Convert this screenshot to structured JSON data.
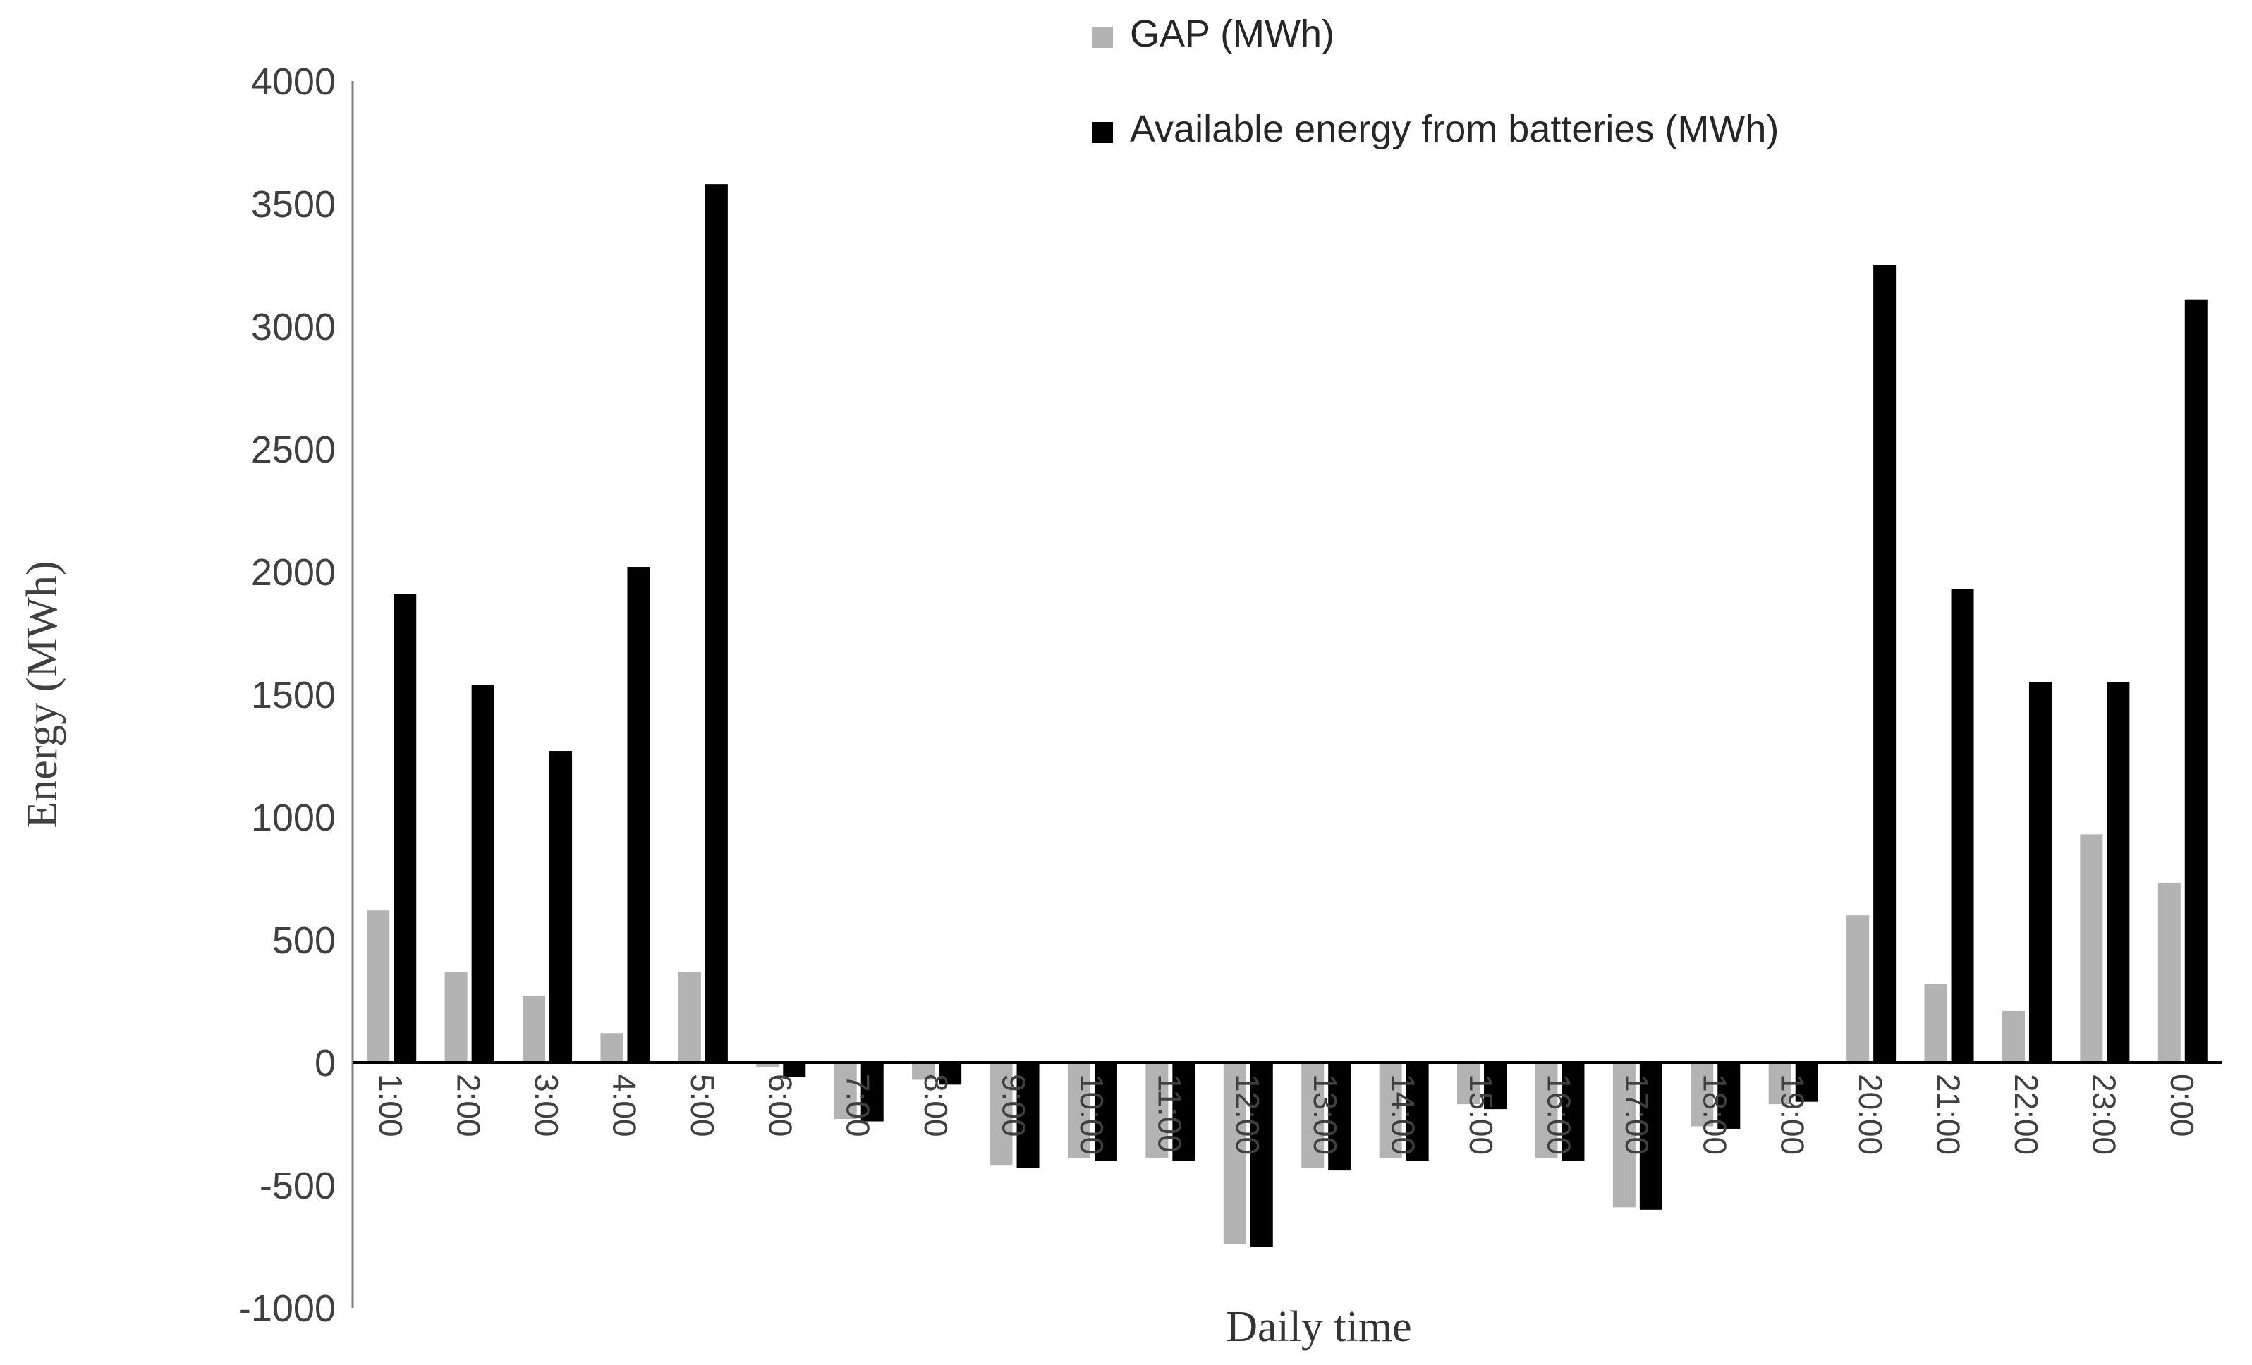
{
  "chart_data": {
    "type": "bar",
    "title": "",
    "xlabel": "Daily time",
    "ylabel": "Energy (MWh)",
    "ylim": [
      -1000,
      4000
    ],
    "yticks": [
      4000,
      3500,
      3000,
      2500,
      2000,
      1500,
      1000,
      500,
      0,
      -500,
      -1000
    ],
    "categories": [
      "1:00",
      "2:00",
      "3:00",
      "4:00",
      "5:00",
      "6:00",
      "7:00",
      "8:00",
      "9:00",
      "10:00",
      "11:00",
      "12:00",
      "13:00",
      "14:00",
      "15:00",
      "16:00",
      "17:00",
      "18:00",
      "19:00",
      "20:00",
      "21:00",
      "22:00",
      "23:00",
      "0:00"
    ],
    "series": [
      {
        "key": "gap",
        "name": "GAP (MWh)",
        "color": "#b3b3b3",
        "values": [
          620,
          370,
          270,
          120,
          370,
          -20,
          -230,
          -70,
          -420,
          -390,
          -390,
          -740,
          -430,
          -390,
          -170,
          -390,
          -590,
          -260,
          -170,
          600,
          320,
          210,
          930,
          730
        ]
      },
      {
        "key": "battery",
        "name": "Available energy from batteries (MWh)",
        "color": "#000000",
        "values": [
          1910,
          1540,
          1270,
          2020,
          3580,
          -60,
          -240,
          -90,
          -430,
          -400,
          -400,
          -750,
          -440,
          -400,
          -190,
          -400,
          -600,
          -270,
          -160,
          3250,
          1930,
          1550,
          1550,
          3110
        ]
      }
    ],
    "legend_position": "top-center",
    "grid": false,
    "colors": {
      "axis_line": "#808080",
      "zero_line": "#000000",
      "tick_text": "#404040"
    }
  }
}
